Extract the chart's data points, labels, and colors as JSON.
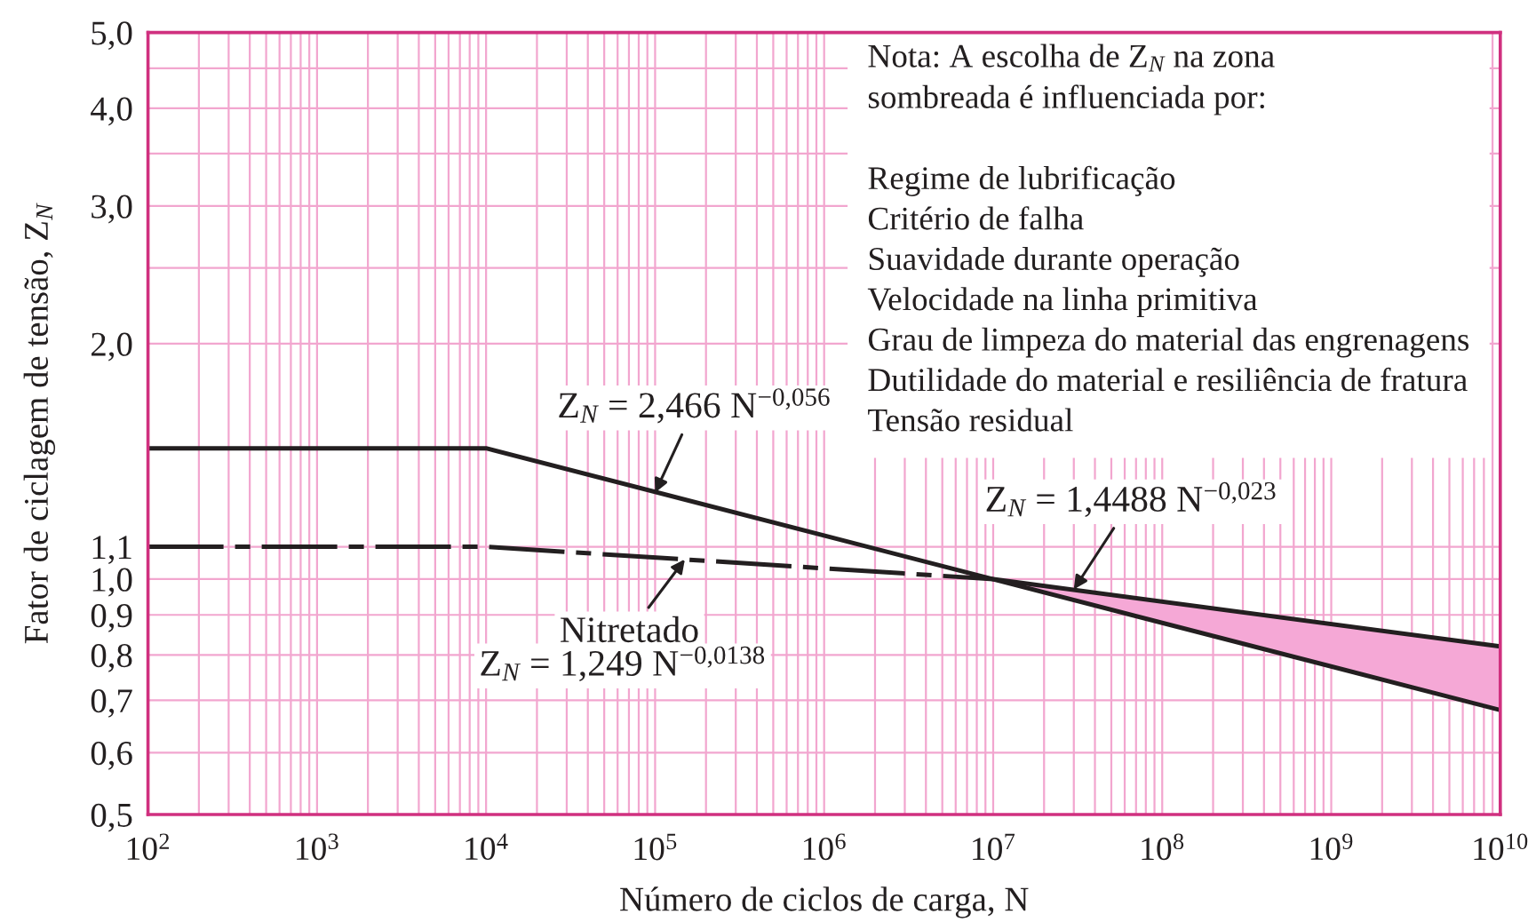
{
  "chart_data": {
    "type": "line",
    "log": "xy",
    "grid": true,
    "xlabel": "Número de ciclos de carga, N",
    "ylabel": "Fator de ciclagem de tensão, Z$_{N}$",
    "xlim": [
      100,
      10000000000.0
    ],
    "ylim": [
      0.5,
      5
    ],
    "xticks": [
      {
        "value": 100,
        "label": "10$^{2}$"
      },
      {
        "value": 200,
        "label": null
      },
      {
        "value": 300,
        "label": null
      },
      {
        "value": 400,
        "label": null
      },
      {
        "value": 500,
        "label": null
      },
      {
        "value": 600,
        "label": null
      },
      {
        "value": 700,
        "label": null
      },
      {
        "value": 800,
        "label": null
      },
      {
        "value": 900,
        "label": null
      },
      {
        "value": 1000,
        "label": "10$^{3}$"
      },
      {
        "value": 2000,
        "label": null
      },
      {
        "value": 3000,
        "label": null
      },
      {
        "value": 4000,
        "label": null
      },
      {
        "value": 5000,
        "label": null
      },
      {
        "value": 6000,
        "label": null
      },
      {
        "value": 7000,
        "label": null
      },
      {
        "value": 8000,
        "label": null
      },
      {
        "value": 9000,
        "label": null
      },
      {
        "value": 10000,
        "label": "10$^{4}$"
      },
      {
        "value": 20000,
        "label": null
      },
      {
        "value": 30000,
        "label": null
      },
      {
        "value": 40000,
        "label": null
      },
      {
        "value": 50000,
        "label": null
      },
      {
        "value": 60000,
        "label": null
      },
      {
        "value": 70000,
        "label": null
      },
      {
        "value": 80000,
        "label": null
      },
      {
        "value": 90000,
        "label": null
      },
      {
        "value": 100000,
        "label": "10$^{5}$"
      },
      {
        "value": 200000,
        "label": null
      },
      {
        "value": 300000,
        "label": null
      },
      {
        "value": 400000,
        "label": null
      },
      {
        "value": 500000,
        "label": null
      },
      {
        "value": 600000,
        "label": null
      },
      {
        "value": 700000,
        "label": null
      },
      {
        "value": 800000,
        "label": null
      },
      {
        "value": 900000,
        "label": null
      },
      {
        "value": 1000000.0,
        "label": "10$^{6}$"
      },
      {
        "value": 2000000.0,
        "label": null
      },
      {
        "value": 3000000.0,
        "label": null
      },
      {
        "value": 4000000.0,
        "label": null
      },
      {
        "value": 5000000.0,
        "label": null
      },
      {
        "value": 6000000.0,
        "label": null
      },
      {
        "value": 7000000.0,
        "label": null
      },
      {
        "value": 8000000.0,
        "label": null
      },
      {
        "value": 9000000.0,
        "label": null
      },
      {
        "value": 10000000.0,
        "label": "10$^{7}$"
      },
      {
        "value": 20000000.0,
        "label": null
      },
      {
        "value": 30000000.0,
        "label": null
      },
      {
        "value": 40000000.0,
        "label": null
      },
      {
        "value": 50000000.0,
        "label": null
      },
      {
        "value": 60000000.0,
        "label": null
      },
      {
        "value": 70000000.0,
        "label": null
      },
      {
        "value": 80000000.0,
        "label": null
      },
      {
        "value": 90000000.0,
        "label": null
      },
      {
        "value": 100000000.0,
        "label": "10$^{8}$"
      },
      {
        "value": 200000000.0,
        "label": null
      },
      {
        "value": 300000000.0,
        "label": null
      },
      {
        "value": 400000000.0,
        "label": null
      },
      {
        "value": 500000000.0,
        "label": null
      },
      {
        "value": 600000000.0,
        "label": null
      },
      {
        "value": 700000000.0,
        "label": null
      },
      {
        "value": 800000000.0,
        "label": null
      },
      {
        "value": 900000000.0,
        "label": null
      },
      {
        "value": 1000000000.0,
        "label": "10$^{9}$"
      },
      {
        "value": 2000000000.0,
        "label": null
      },
      {
        "value": 3000000000.0,
        "label": null
      },
      {
        "value": 4000000000.0,
        "label": null
      },
      {
        "value": 5000000000.0,
        "label": null
      },
      {
        "value": 6000000000.0,
        "label": null
      },
      {
        "value": 7000000000.0,
        "label": null
      },
      {
        "value": 8000000000.0,
        "label": null
      },
      {
        "value": 9000000000.0,
        "label": null
      },
      {
        "value": 10000000000.0,
        "label": "10$^{10}$"
      }
    ],
    "yticks": [
      {
        "value": 0.5,
        "label": "0,5"
      },
      {
        "value": 0.6,
        "label": "0,6"
      },
      {
        "value": 0.7,
        "label": "0,7"
      },
      {
        "value": 0.8,
        "label": "0,8"
      },
      {
        "value": 0.9,
        "label": "0,9"
      },
      {
        "value": 1.0,
        "label": "1,0"
      },
      {
        "value": 1.1,
        "label": "1,1"
      },
      {
        "value": 2,
        "label": "2,0"
      },
      {
        "value": 2.5,
        "label": null
      },
      {
        "value": 3,
        "label": "3,0"
      },
      {
        "value": 3.5,
        "label": null
      },
      {
        "value": 4,
        "label": "4,0"
      },
      {
        "value": 4.5,
        "label": null
      },
      {
        "value": 5,
        "label": "5,0"
      }
    ],
    "series": [
      {
        "x": [
          100,
          10000,
          10000000000.0
        ],
        "values": [
          1.47,
          1.47,
          0.68
        ],
        "color": "#231f20",
        "line_style": "solid"
      },
      {
        "x": [
          100,
          10000,
          10000000.0
        ],
        "values": [
          1.1,
          1.1,
          1.0
        ],
        "color": "#231f20",
        "line_style": "dashed"
      },
      {
        "x": [
          10000000.0,
          10000000000.0
        ],
        "values": [
          1.0,
          0.82
        ],
        "lower": [
          1.0,
          0.68
        ],
        "upper": [
          1.0,
          0.82
        ],
        "color": "#231f20",
        "line_style": "solid"
      }
    ],
    "annotations": [
      "Nota: A escolha de Z$_{N}$ na zona\nsombreada é influenciada por:\n\nRegime de lubrificação\nCritério de falha\nSuavidade durante operação\nVelocidade na linha primitiva\nGrau de limpeza do material das engrenagens\nDutilidade do material e resiliência de fratura\nTensão residual",
      {
        "text": "Z$_{N}$ = 2,466 N$^{−0,056}$",
        "x": 100000,
        "y": 1.29
      },
      {
        "text": "Nitretado",
        "x": 150000,
        "y": 1.06
      },
      "Z$_{N}$ = 1,249 N$^{−0,0138}$",
      {
        "text": "Z$_{N}$ = 1,4488 N$^{−0,023}$",
        "x": 30000000.0,
        "y": 0.97
      }
    ]
  }
}
